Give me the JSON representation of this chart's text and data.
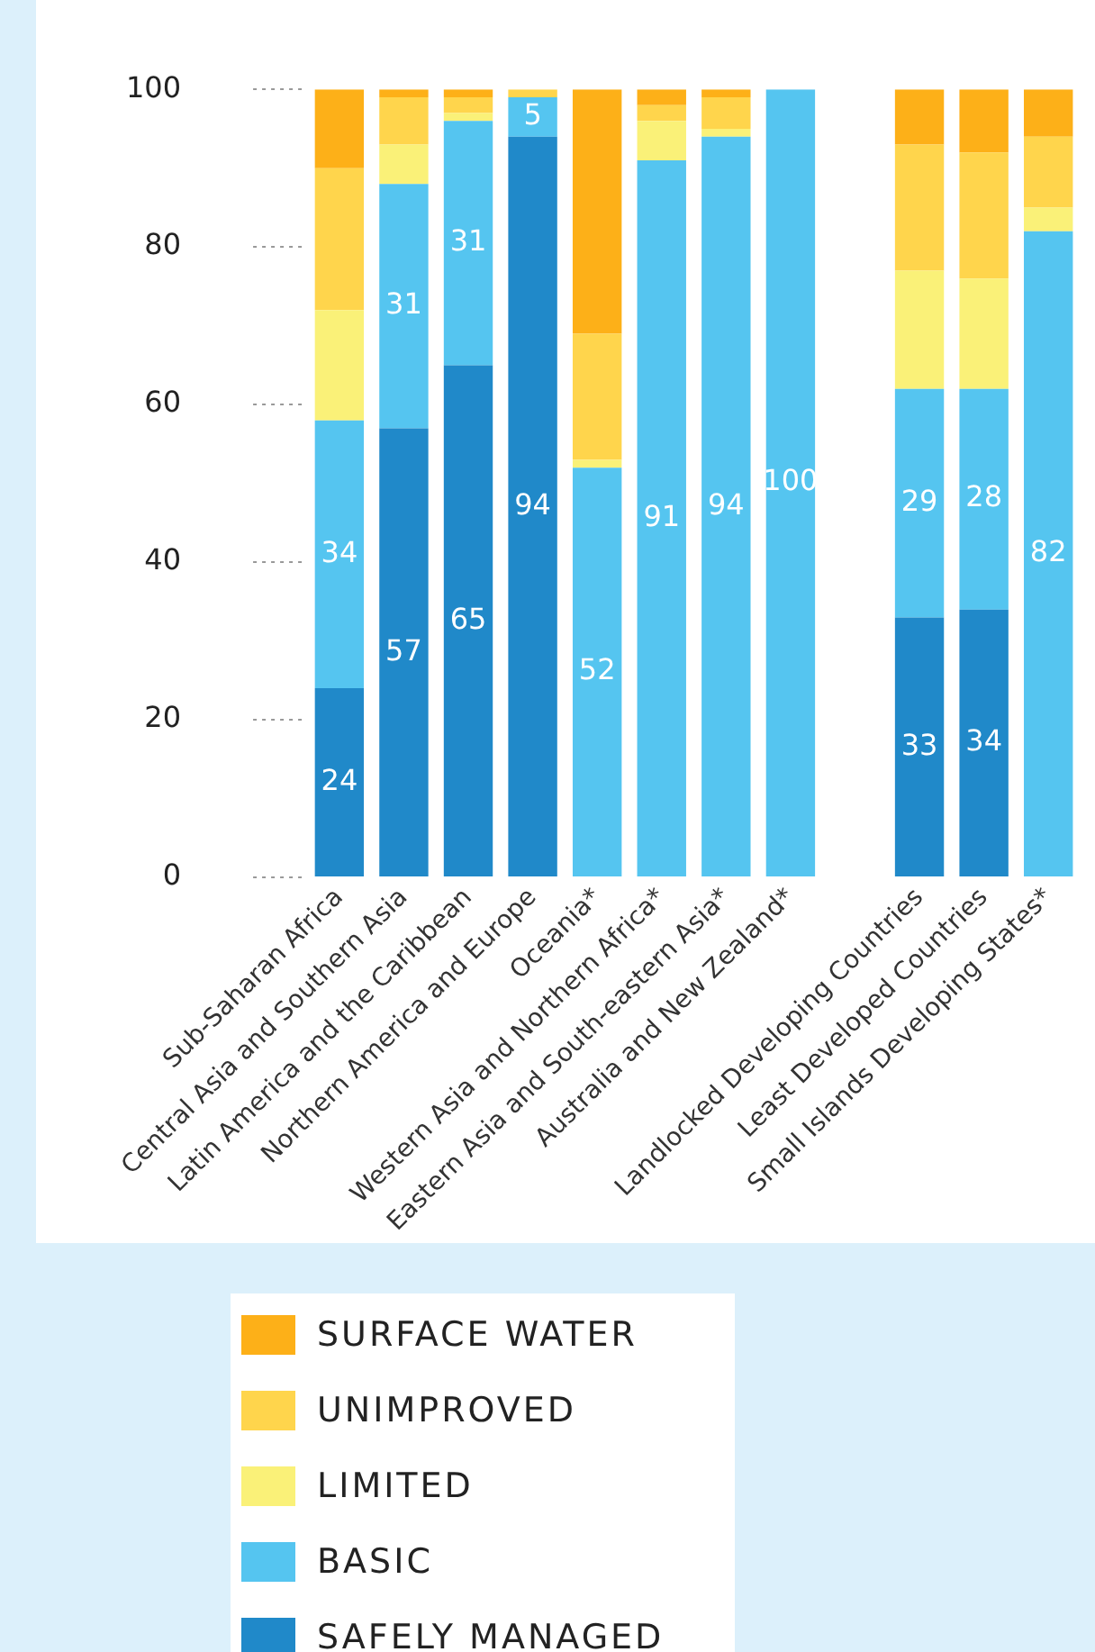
{
  "chart_data": {
    "type": "bar",
    "stacked": true,
    "categories": [
      "Sub-Saharan Africa",
      "Central Asia and Southern Asia",
      "Latin America and the Caribbean",
      "Northern America and Europe",
      "Oceania*",
      "Western Asia and Northern Africa*",
      "Eastern Asia and South-eastern Asia*",
      "Australia and New Zealand*",
      null,
      "Landlocked Developing Countries",
      "Least Developed Countries",
      "Small Islands Developing States*"
    ],
    "series": [
      {
        "name": "SAFELY MANAGED",
        "color": "#2089c9",
        "values": [
          24,
          57,
          65,
          94,
          null,
          null,
          null,
          null,
          null,
          33,
          34,
          null
        ],
        "value_labels": [
          "24",
          "57",
          "65",
          "94",
          null,
          null,
          null,
          null,
          null,
          "33",
          "34",
          null
        ]
      },
      {
        "name": "BASIC",
        "color": "#55c5f0",
        "values": [
          34,
          31,
          31,
          5,
          52,
          91,
          94,
          100,
          null,
          29,
          28,
          82
        ],
        "value_labels": [
          "34",
          "31",
          "31",
          "5",
          "52",
          "91",
          "94",
          "100",
          null,
          "29",
          "28",
          "82"
        ]
      },
      {
        "name": "LIMITED",
        "color": "#faf178",
        "values": [
          14,
          5,
          1,
          0,
          1,
          5,
          1,
          0,
          null,
          15,
          14,
          3
        ]
      },
      {
        "name": "UNIMPROVED",
        "color": "#ffd54c",
        "values": [
          18,
          6,
          2,
          1,
          16,
          2,
          4,
          0,
          null,
          16,
          16,
          9
        ]
      },
      {
        "name": "SURFACE WATER",
        "color": "#fdb018",
        "values": [
          10,
          1,
          1,
          0,
          31,
          2,
          1,
          0,
          null,
          7,
          8,
          6
        ]
      }
    ],
    "ylim": [
      0,
      100
    ],
    "yticks": [
      0,
      20,
      40,
      60,
      80,
      100
    ],
    "grid": false,
    "legend": "bottom"
  }
}
